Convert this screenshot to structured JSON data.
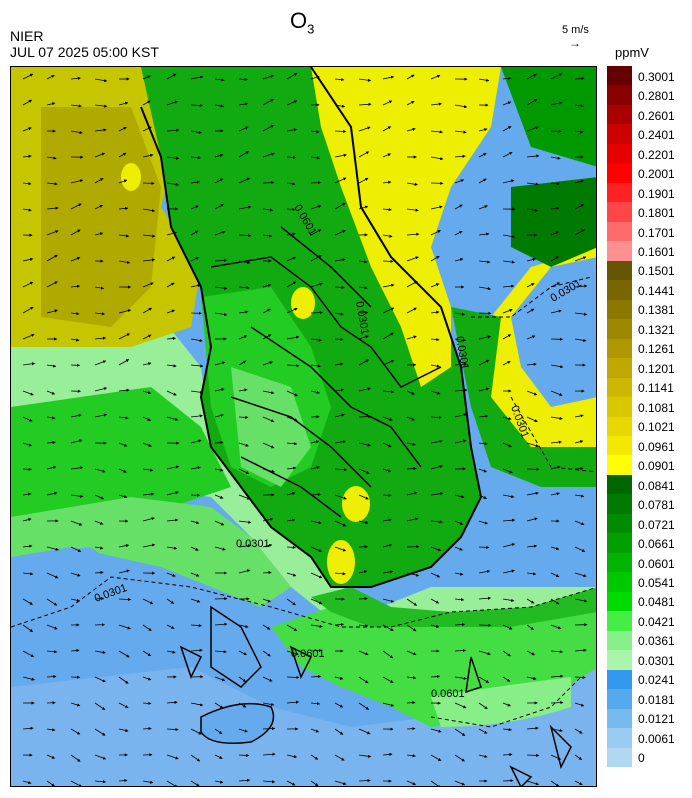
{
  "header": {
    "organization": "NIER",
    "datetime": "JUL 07 2025 05:00 KST",
    "title_main": "O",
    "title_sub": "3",
    "ref_vector_label": "5 m/s",
    "ref_vector_arrow": "→",
    "unit": "ppmV"
  },
  "map": {
    "contour_labels": [
      "0.0601",
      "0.0301",
      "0.0301",
      "0.0301",
      "0.0301",
      "0.0301",
      "0.0301",
      "0.0601",
      "0.0601"
    ],
    "colors": {
      "sea_background": "#66aaee",
      "sea_light": "#99ccf0",
      "land_outline": "#000000",
      "wind_arrow": "#000000"
    }
  },
  "legend": {
    "items": [
      {
        "label": "0.3001",
        "color": "#660000"
      },
      {
        "label": "0.2801",
        "color": "#880000"
      },
      {
        "label": "0.2601",
        "color": "#aa0000"
      },
      {
        "label": "0.2401",
        "color": "#cc0000"
      },
      {
        "label": "0.2201",
        "color": "#e60000"
      },
      {
        "label": "0.2001",
        "color": "#ff0000"
      },
      {
        "label": "0.1901",
        "color": "#ff2222"
      },
      {
        "label": "0.1801",
        "color": "#ff4646"
      },
      {
        "label": "0.1701",
        "color": "#ff6a6a"
      },
      {
        "label": "0.1601",
        "color": "#ff9090"
      },
      {
        "label": "0.1501",
        "color": "#665500"
      },
      {
        "label": "0.1441",
        "color": "#7a6600"
      },
      {
        "label": "0.1381",
        "color": "#8c7700"
      },
      {
        "label": "0.1321",
        "color": "#9e8800"
      },
      {
        "label": "0.1261",
        "color": "#b09900"
      },
      {
        "label": "0.1201",
        "color": "#bfa800"
      },
      {
        "label": "0.1141",
        "color": "#ccb800"
      },
      {
        "label": "0.1081",
        "color": "#d9c800"
      },
      {
        "label": "0.1021",
        "color": "#e6d800"
      },
      {
        "label": "0.0961",
        "color": "#f2e800"
      },
      {
        "label": "0.0901",
        "color": "#ffff00"
      },
      {
        "label": "0.0841",
        "color": "#006600"
      },
      {
        "label": "0.0781",
        "color": "#007a00"
      },
      {
        "label": "0.0721",
        "color": "#008c00"
      },
      {
        "label": "0.0661",
        "color": "#00a000"
      },
      {
        "label": "0.0601",
        "color": "#00b400"
      },
      {
        "label": "0.0541",
        "color": "#00c800"
      },
      {
        "label": "0.0481",
        "color": "#00dc00"
      },
      {
        "label": "0.0421",
        "color": "#44ee44"
      },
      {
        "label": "0.0361",
        "color": "#88f088"
      },
      {
        "label": "0.0301",
        "color": "#aaf5aa"
      },
      {
        "label": "0.0241",
        "color": "#3399ee"
      },
      {
        "label": "0.0181",
        "color": "#55aaee"
      },
      {
        "label": "0.0121",
        "color": "#77bbee"
      },
      {
        "label": "0.0061",
        "color": "#99ccf0"
      },
      {
        "label": "0",
        "color": "#b0d8f2"
      }
    ]
  }
}
